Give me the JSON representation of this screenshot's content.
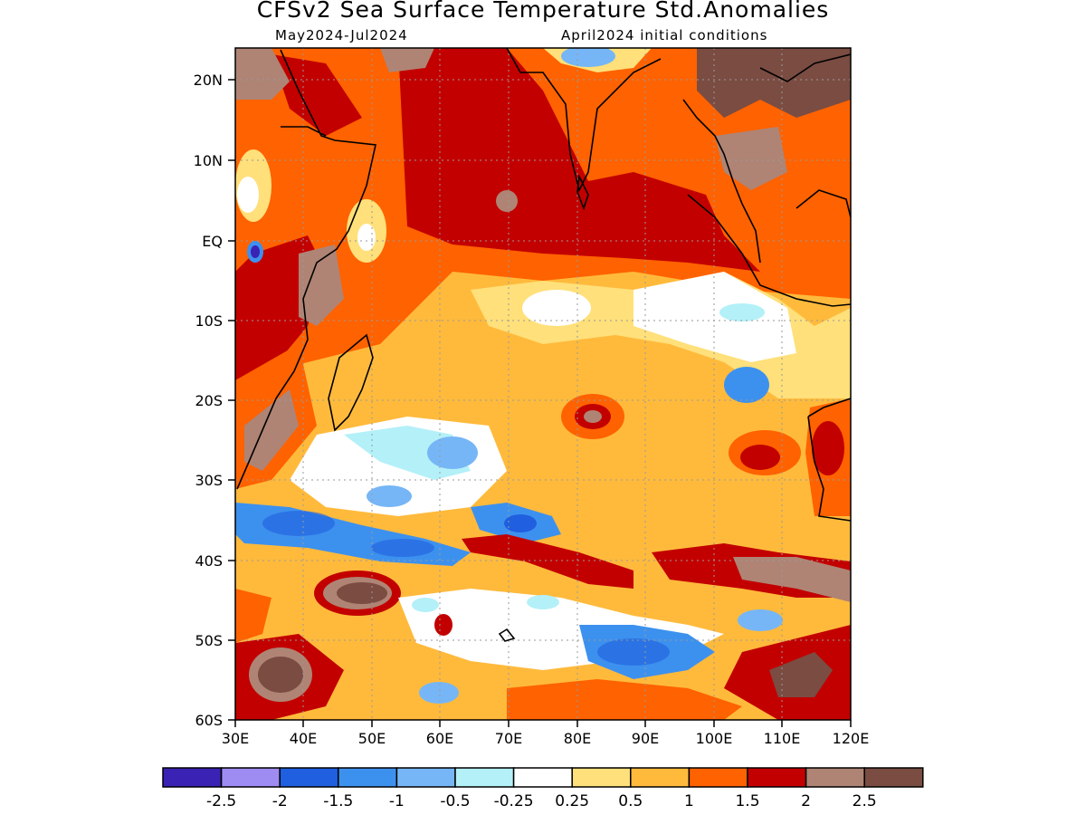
{
  "header": {
    "title": "CFSv2 Sea Surface Temperature Std.Anomalies",
    "period": "May2024-Jul2024",
    "init": "April2024 initial conditions"
  },
  "map": {
    "lat_labels": [
      "20N",
      "10N",
      "EQ",
      "10S",
      "20S",
      "30S",
      "40S",
      "50S",
      "60S"
    ],
    "lon_labels": [
      "30E",
      "40E",
      "50E",
      "60E",
      "70E",
      "80E",
      "90E",
      "100E",
      "110E",
      "120E"
    ]
  },
  "legend": {
    "colors": [
      "#3a22b4",
      "#9f8cf2",
      "#1f5fe0",
      "#3d91ee",
      "#76b6f6",
      "#b4f0f8",
      "#ffffff",
      "#ffe07a",
      "#ffba3c",
      "#ff6200",
      "#c30000",
      "#af8474",
      "#7a4c42"
    ],
    "labels": [
      "-2.5",
      "-2",
      "-1.5",
      "-1",
      "-0.5",
      "-0.25",
      "0.25",
      "0.5",
      "1",
      "1.5",
      "2",
      "2.5"
    ]
  }
}
